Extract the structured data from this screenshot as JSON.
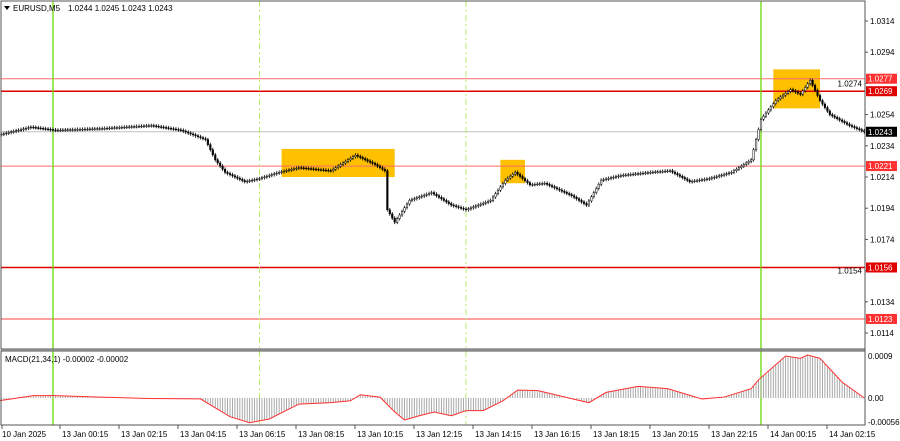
{
  "chart_data": [
    {
      "type": "candlestick",
      "title": "EURUSD,M5",
      "ohlc_readout": [
        "1.0244",
        "1.0245",
        "1.0243",
        "1.0243"
      ],
      "ylim": [
        1.0104,
        1.033
      ],
      "y_ticks": [
        "1.0314",
        "1.0294",
        "1.0274",
        "1.0254",
        "1.0234",
        "1.0214",
        "1.0194",
        "1.0174",
        "1.0154",
        "1.0134",
        "1.0114"
      ],
      "x_ticks": [
        "10 Jan 2025",
        "13 Jan 00:15",
        "13 Jan 02:15",
        "13 Jan 04:15",
        "13 Jan 06:15",
        "13 Jan 08:15",
        "13 Jan 10:15",
        "13 Jan 12:15",
        "13 Jan 14:15",
        "13 Jan 16:15",
        "13 Jan 18:15",
        "13 Jan 20:15",
        "13 Jan 22:15",
        "14 Jan 00:15",
        "14 Jan 02:15"
      ],
      "close_path": [
        [
          "10 Jan 22:10",
          1.0241
        ],
        [
          "10 Jan 23:15",
          1.0246
        ],
        [
          "13 Jan 00:05",
          1.0244
        ],
        [
          "13 Jan 01:35",
          1.0245
        ],
        [
          "13 Jan 03:20",
          1.0247
        ],
        [
          "13 Jan 04:20",
          1.0244
        ],
        [
          "13 Jan 05:10",
          1.0238
        ],
        [
          "13 Jan 05:30",
          1.0225
        ],
        [
          "13 Jan 05:50",
          1.0217
        ],
        [
          "13 Jan 06:30",
          1.0211
        ],
        [
          "13 Jan 07:00",
          1.0213
        ],
        [
          "13 Jan 07:40",
          1.0217
        ],
        [
          "13 Jan 08:20",
          1.022
        ],
        [
          "13 Jan 09:25",
          1.0218
        ],
        [
          "13 Jan 10:15",
          1.0228
        ],
        [
          "13 Jan 10:55",
          1.0222
        ],
        [
          "13 Jan 11:15",
          1.0218
        ],
        [
          "13 Jan 11:20",
          1.0193
        ],
        [
          "13 Jan 11:35",
          1.0185
        ],
        [
          "13 Jan 12:05",
          1.0199
        ],
        [
          "13 Jan 12:50",
          1.0204
        ],
        [
          "13 Jan 13:30",
          1.0196
        ],
        [
          "13 Jan 14:00",
          1.0193
        ],
        [
          "13 Jan 14:50",
          1.0199
        ],
        [
          "13 Jan 15:20",
          1.0212
        ],
        [
          "13 Jan 15:40",
          1.0217
        ],
        [
          "13 Jan 16:10",
          1.0209
        ],
        [
          "13 Jan 16:40",
          1.021
        ],
        [
          "13 Jan 17:35",
          1.0202
        ],
        [
          "13 Jan 18:05",
          1.0196
        ],
        [
          "13 Jan 18:35",
          1.0212
        ],
        [
          "13 Jan 19:15",
          1.0215
        ],
        [
          "13 Jan 20:15",
          1.0217
        ],
        [
          "13 Jan 20:55",
          1.0218
        ],
        [
          "13 Jan 21:35",
          1.0211
        ],
        [
          "13 Jan 22:15",
          1.0213
        ],
        [
          "13 Jan 23:00",
          1.0217
        ],
        [
          "13 Jan 23:40",
          1.0225
        ],
        [
          "14 Jan 00:00",
          1.0251
        ],
        [
          "14 Jan 00:30",
          1.0263
        ],
        [
          "14 Jan 01:00",
          1.027
        ],
        [
          "14 Jan 01:20",
          1.0267
        ],
        [
          "14 Jan 01:40",
          1.0276
        ],
        [
          "14 Jan 02:00",
          1.0263
        ],
        [
          "14 Jan 02:20",
          1.0254
        ],
        [
          "14 Jan 03:00",
          1.0247
        ],
        [
          "14 Jan 03:30",
          1.0243
        ]
      ],
      "levels": [
        {
          "label": "1.0277",
          "price": 1.0277,
          "color": "#ff6b6b",
          "strong": false
        },
        {
          "label": "1.0269",
          "price": 1.0269,
          "color": "#e00000",
          "strong": true
        },
        {
          "label": "1.0221",
          "price": 1.0221,
          "color": "#ff6b6b",
          "strong": false
        },
        {
          "label": "1.0156",
          "price": 1.0156,
          "color": "#e00000",
          "strong": true
        },
        {
          "label": "1.0123",
          "price": 1.0123,
          "color": "#ff4040",
          "strong": false
        }
      ],
      "current_price": {
        "label": "1.0243",
        "price": 1.0243
      },
      "highlight_zones": [
        {
          "from": "13 Jan 07:45",
          "to": "13 Jan 11:35",
          "high": 1.0232,
          "low": 1.0214
        },
        {
          "from": "13 Jan 15:10",
          "to": "13 Jan 16:00",
          "high": 1.0225,
          "low": 1.021
        },
        {
          "from": "14 Jan 00:25",
          "to": "14 Jan 02:00",
          "high": 1.0283,
          "low": 1.0258
        }
      ],
      "session_lines": [
        {
          "time": "13 Jan 00:00",
          "style": "solid"
        },
        {
          "time": "13 Jan 07:00",
          "style": "dashed"
        },
        {
          "time": "13 Jan 14:00",
          "style": "dashed"
        },
        {
          "time": "14 Jan 00:00",
          "style": "solid"
        }
      ],
      "colors": {
        "candle": "#000000",
        "level_strong": "#e00000",
        "level_weak": "#ff6b6b",
        "zone": "#ffc000",
        "session": "#7fe000",
        "current": "#c0c0c0"
      }
    },
    {
      "type": "histogram+line",
      "title": "MACD(21,34,1) -0.00002 -0.00002",
      "ylim": [
        -0.00056,
        0.0009
      ],
      "y_ticks": [
        "0.0009",
        "0.00",
        "-0.00056"
      ],
      "series": [
        [
          "10 Jan 22:10",
          -6e-05
        ],
        [
          "10 Jan 23:20",
          5e-05
        ],
        [
          "13 Jan 00:05",
          5e-05
        ],
        [
          "13 Jan 01:35",
          2e-05
        ],
        [
          "13 Jan 03:15",
          -1e-05
        ],
        [
          "13 Jan 05:00",
          -2e-05
        ],
        [
          "13 Jan 06:00",
          -0.0004
        ],
        [
          "13 Jan 06:40",
          -0.00053
        ],
        [
          "13 Jan 07:20",
          -0.00045
        ],
        [
          "13 Jan 08:20",
          -0.00013
        ],
        [
          "13 Jan 09:25",
          -0.0001
        ],
        [
          "13 Jan 10:05",
          -6e-05
        ],
        [
          "13 Jan 10:25",
          7e-05
        ],
        [
          "13 Jan 11:05",
          2e-05
        ],
        [
          "13 Jan 11:35",
          -0.0003
        ],
        [
          "13 Jan 11:55",
          -0.00047
        ],
        [
          "13 Jan 12:25",
          -0.00038
        ],
        [
          "13 Jan 12:55",
          -0.0003
        ],
        [
          "13 Jan 13:30",
          -0.00038
        ],
        [
          "13 Jan 14:00",
          -0.00027
        ],
        [
          "13 Jan 14:35",
          -0.00027
        ],
        [
          "13 Jan 15:15",
          -6e-05
        ],
        [
          "13 Jan 15:45",
          0.00017
        ],
        [
          "13 Jan 16:25",
          0.00016
        ],
        [
          "13 Jan 16:50",
          0.0001
        ],
        [
          "13 Jan 17:45",
          -4e-05
        ],
        [
          "13 Jan 18:10",
          -0.0001
        ],
        [
          "13 Jan 18:45",
          0.00012
        ],
        [
          "13 Jan 19:50",
          0.00025
        ],
        [
          "13 Jan 20:50",
          0.0002
        ],
        [
          "13 Jan 22:00",
          -2e-05
        ],
        [
          "13 Jan 22:45",
          2e-05
        ],
        [
          "13 Jan 23:40",
          0.0002
        ],
        [
          "13 Jan 23:55",
          0.00039
        ],
        [
          "14 Jan 00:50",
          0.0009
        ],
        [
          "14 Jan 01:20",
          0.00085
        ],
        [
          "14 Jan 01:35",
          0.00092
        ],
        [
          "14 Jan 02:00",
          0.00085
        ],
        [
          "14 Jan 02:45",
          0.00034
        ],
        [
          "14 Jan 03:30",
          0.0
        ]
      ],
      "colors": {
        "histogram": "#a0a0a0",
        "signal": "#ff3030"
      }
    }
  ]
}
